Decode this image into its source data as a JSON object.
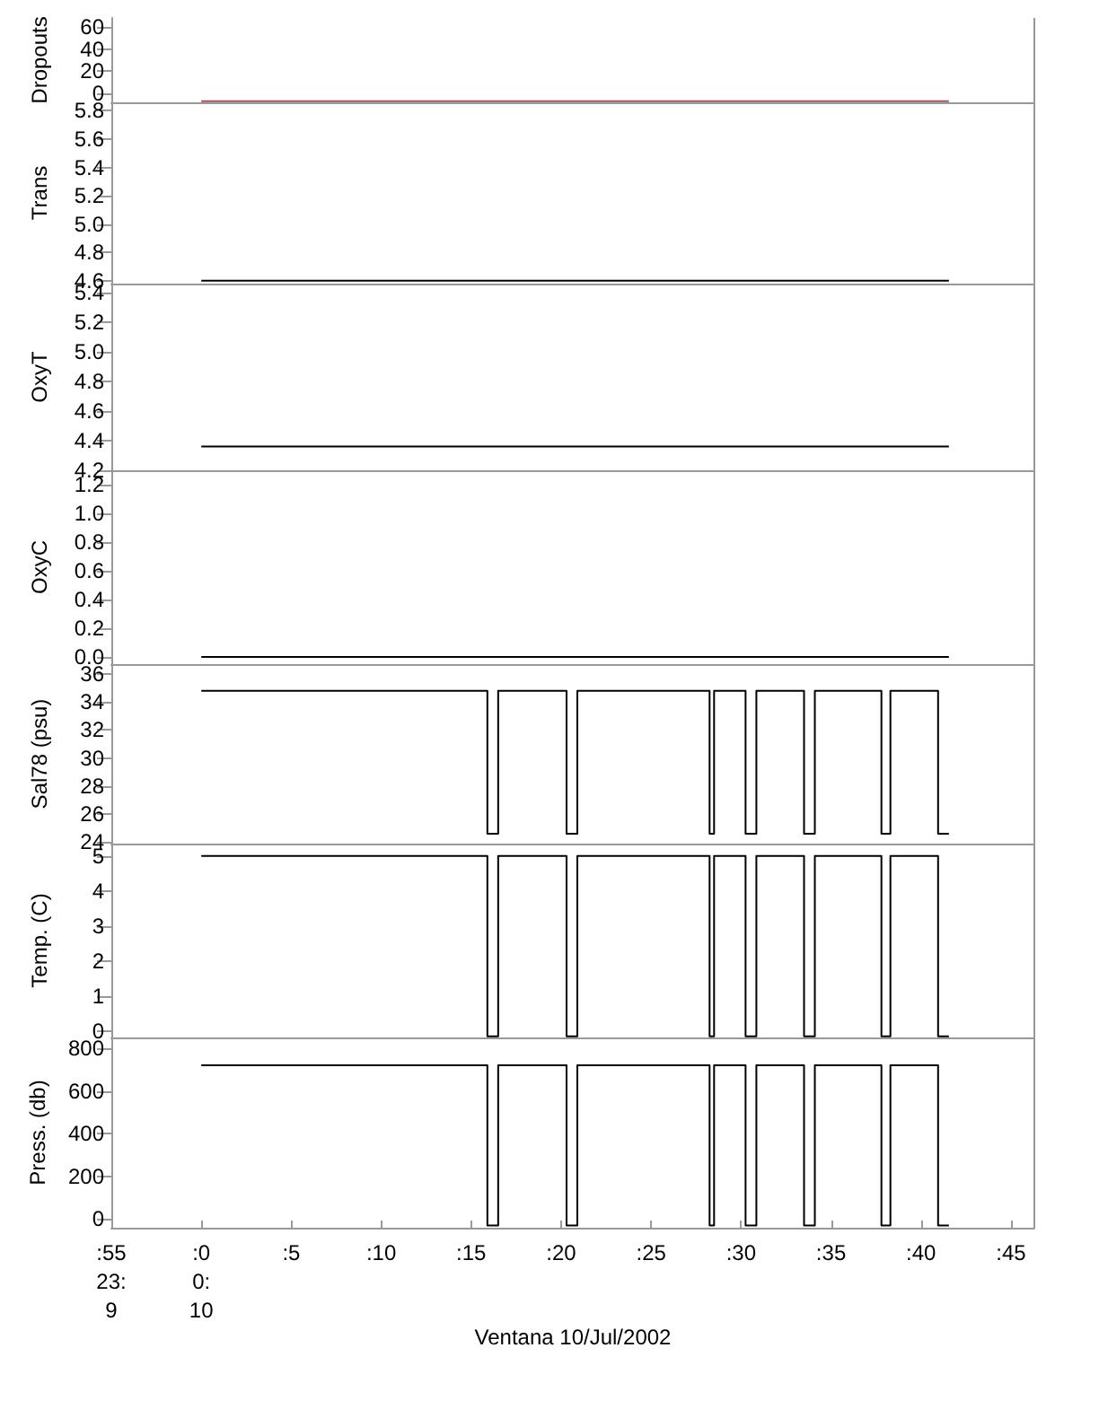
{
  "chart_data": [
    {
      "type": "line",
      "ylabel": "Dropouts",
      "x": [
        0,
        41.55
      ],
      "series": [
        {
          "color": "#a05050",
          "values": [
            -7,
            -7
          ]
        }
      ],
      "xlim": [
        -5,
        46.3
      ],
      "ylim": [
        -8,
        68
      ],
      "yticks": [
        0,
        20,
        40,
        60
      ],
      "tick_labels": "y"
    },
    {
      "type": "line",
      "ylabel": "Trans",
      "x": [
        0,
        41.55
      ],
      "series": [
        {
          "color": "#000000",
          "values": [
            4.6,
            4.6
          ]
        }
      ],
      "xlim": [
        -5,
        46.3
      ],
      "ylim": [
        4.58,
        5.86
      ],
      "yticks": [
        {
          "value": 4.6,
          "label": "4.6"
        },
        {
          "value": 4.8,
          "label": "4.8"
        },
        {
          "value": 5.0,
          "label": "5.0"
        },
        {
          "value": 5.2,
          "label": "5.2"
        },
        {
          "value": 5.4,
          "label": "5.4"
        },
        {
          "value": 5.6,
          "label": "5.6"
        },
        {
          "value": 5.8,
          "label": "5.8"
        }
      ],
      "tick_labels": "y"
    },
    {
      "type": "line",
      "ylabel": "OxyT",
      "x": [
        0,
        41.55
      ],
      "series": [
        {
          "color": "#000000",
          "values": [
            4.36,
            4.36
          ]
        }
      ],
      "xlim": [
        -5,
        46.3
      ],
      "ylim": [
        4.2,
        5.46
      ],
      "yticks": [
        {
          "value": 4.2,
          "label": "4.2"
        },
        {
          "value": 4.4,
          "label": "4.4"
        },
        {
          "value": 4.6,
          "label": "4.6"
        },
        {
          "value": 4.8,
          "label": "4.8"
        },
        {
          "value": 5.0,
          "label": "5.0"
        },
        {
          "value": 5.2,
          "label": "5.2"
        },
        {
          "value": 5.4,
          "label": "5.4"
        }
      ],
      "tick_labels": "y"
    },
    {
      "type": "line",
      "ylabel": "OxyC",
      "x": [
        0,
        41.55
      ],
      "series": [
        {
          "color": "#000000",
          "values": [
            0,
            0
          ]
        }
      ],
      "xlim": [
        -5,
        46.3
      ],
      "ylim": [
        -0.05,
        1.3
      ],
      "yticks": [
        {
          "value": 0,
          "label": "0.0"
        },
        {
          "value": 0.2,
          "label": "0.2"
        },
        {
          "value": 0.4,
          "label": "0.4"
        },
        {
          "value": 0.6,
          "label": "0.6"
        },
        {
          "value": 0.8,
          "label": "0.8"
        },
        {
          "value": 1.0,
          "label": "1.0"
        },
        {
          "value": 1.2,
          "label": "1.2"
        }
      ],
      "tick_labels": "y"
    },
    {
      "type": "line",
      "ylabel": "Sal78 (psu)",
      "x": [
        0,
        15.9,
        15.9,
        16.5,
        16.5,
        20.3,
        20.3,
        20.9,
        20.9,
        28.25,
        28.25,
        28.5,
        28.5,
        30.25,
        30.25,
        30.85,
        30.85,
        33.5,
        33.5,
        34.1,
        34.1,
        37.8,
        37.8,
        38.3,
        38.3,
        40.95,
        40.95,
        41.55
      ],
      "series": [
        {
          "color": "#000000",
          "values": [
            34.8,
            34.8,
            24.6,
            24.6,
            34.8,
            34.8,
            24.6,
            24.6,
            34.8,
            34.8,
            24.6,
            24.6,
            34.8,
            34.8,
            24.6,
            24.6,
            34.8,
            34.8,
            24.6,
            24.6,
            34.8,
            34.8,
            24.6,
            24.6,
            34.8,
            34.8,
            24.6,
            24.6
          ]
        }
      ],
      "xlim": [
        -5,
        46.3
      ],
      "ylim": [
        23.9,
        36.7
      ],
      "yticks": [
        24,
        26,
        28,
        30,
        32,
        34,
        36
      ],
      "tick_labels": "y"
    },
    {
      "type": "line",
      "ylabel": "Temp. (C)",
      "x": [
        0,
        15.9,
        15.9,
        16.5,
        16.5,
        20.3,
        20.3,
        20.9,
        20.9,
        28.25,
        28.25,
        28.5,
        28.5,
        30.25,
        30.25,
        30.85,
        30.85,
        33.5,
        33.5,
        34.1,
        34.1,
        37.8,
        37.8,
        38.3,
        38.3,
        40.95,
        40.95,
        41.55
      ],
      "series": [
        {
          "color": "#000000",
          "values": [
            5.0,
            5.0,
            -0.15,
            -0.15,
            5.0,
            5.0,
            -0.15,
            -0.15,
            5.0,
            5.0,
            -0.15,
            -0.15,
            5.0,
            5.0,
            -0.15,
            -0.15,
            5.0,
            5.0,
            -0.15,
            -0.15,
            5.0,
            5.0,
            -0.15,
            -0.15,
            5.0,
            5.0,
            -0.15,
            -0.15
          ]
        }
      ],
      "xlim": [
        -5,
        46.3
      ],
      "ylim": [
        -0.18,
        5.35
      ],
      "yticks": [
        0,
        1,
        2,
        3,
        4,
        5
      ],
      "tick_labels": "y"
    },
    {
      "type": "line",
      "ylabel": "Press. (db)",
      "xlabel": "Ventana 10/Jul/2002",
      "x": [
        0,
        15.9,
        15.9,
        16.5,
        16.5,
        20.3,
        20.3,
        20.9,
        20.9,
        28.25,
        28.25,
        28.5,
        28.5,
        30.25,
        30.25,
        30.85,
        30.85,
        33.5,
        33.5,
        34.1,
        34.1,
        37.8,
        37.8,
        38.3,
        38.3,
        40.95,
        40.95,
        41.55
      ],
      "series": [
        {
          "color": "#000000",
          "values": [
            720,
            720,
            -30,
            -30,
            720,
            720,
            -30,
            -30,
            720,
            720,
            -30,
            -30,
            720,
            720,
            -30,
            -30,
            720,
            720,
            -30,
            -30,
            720,
            720,
            -30,
            -30,
            720,
            720,
            -30,
            -30
          ]
        }
      ],
      "xlim": [
        -5,
        46.3
      ],
      "xticks": [
        {
          "value": -5,
          "label": ":55\n23:\n9"
        },
        {
          "value": 0,
          "label": ":0\n0:\n10"
        },
        {
          "value": 5,
          "label": ":5"
        },
        {
          "value": 10,
          "label": ":10"
        },
        {
          "value": 15,
          "label": ":15"
        },
        {
          "value": 20,
          "label": ":20"
        },
        {
          "value": 25,
          "label": ":25"
        },
        {
          "value": 30,
          "label": ":30"
        },
        {
          "value": 35,
          "label": ":35"
        },
        {
          "value": 40,
          "label": ":40"
        },
        {
          "value": 45,
          "label": ":45"
        }
      ],
      "ylim": [
        -40,
        850
      ],
      "yticks": [
        0,
        200,
        400,
        600,
        800
      ]
    }
  ]
}
